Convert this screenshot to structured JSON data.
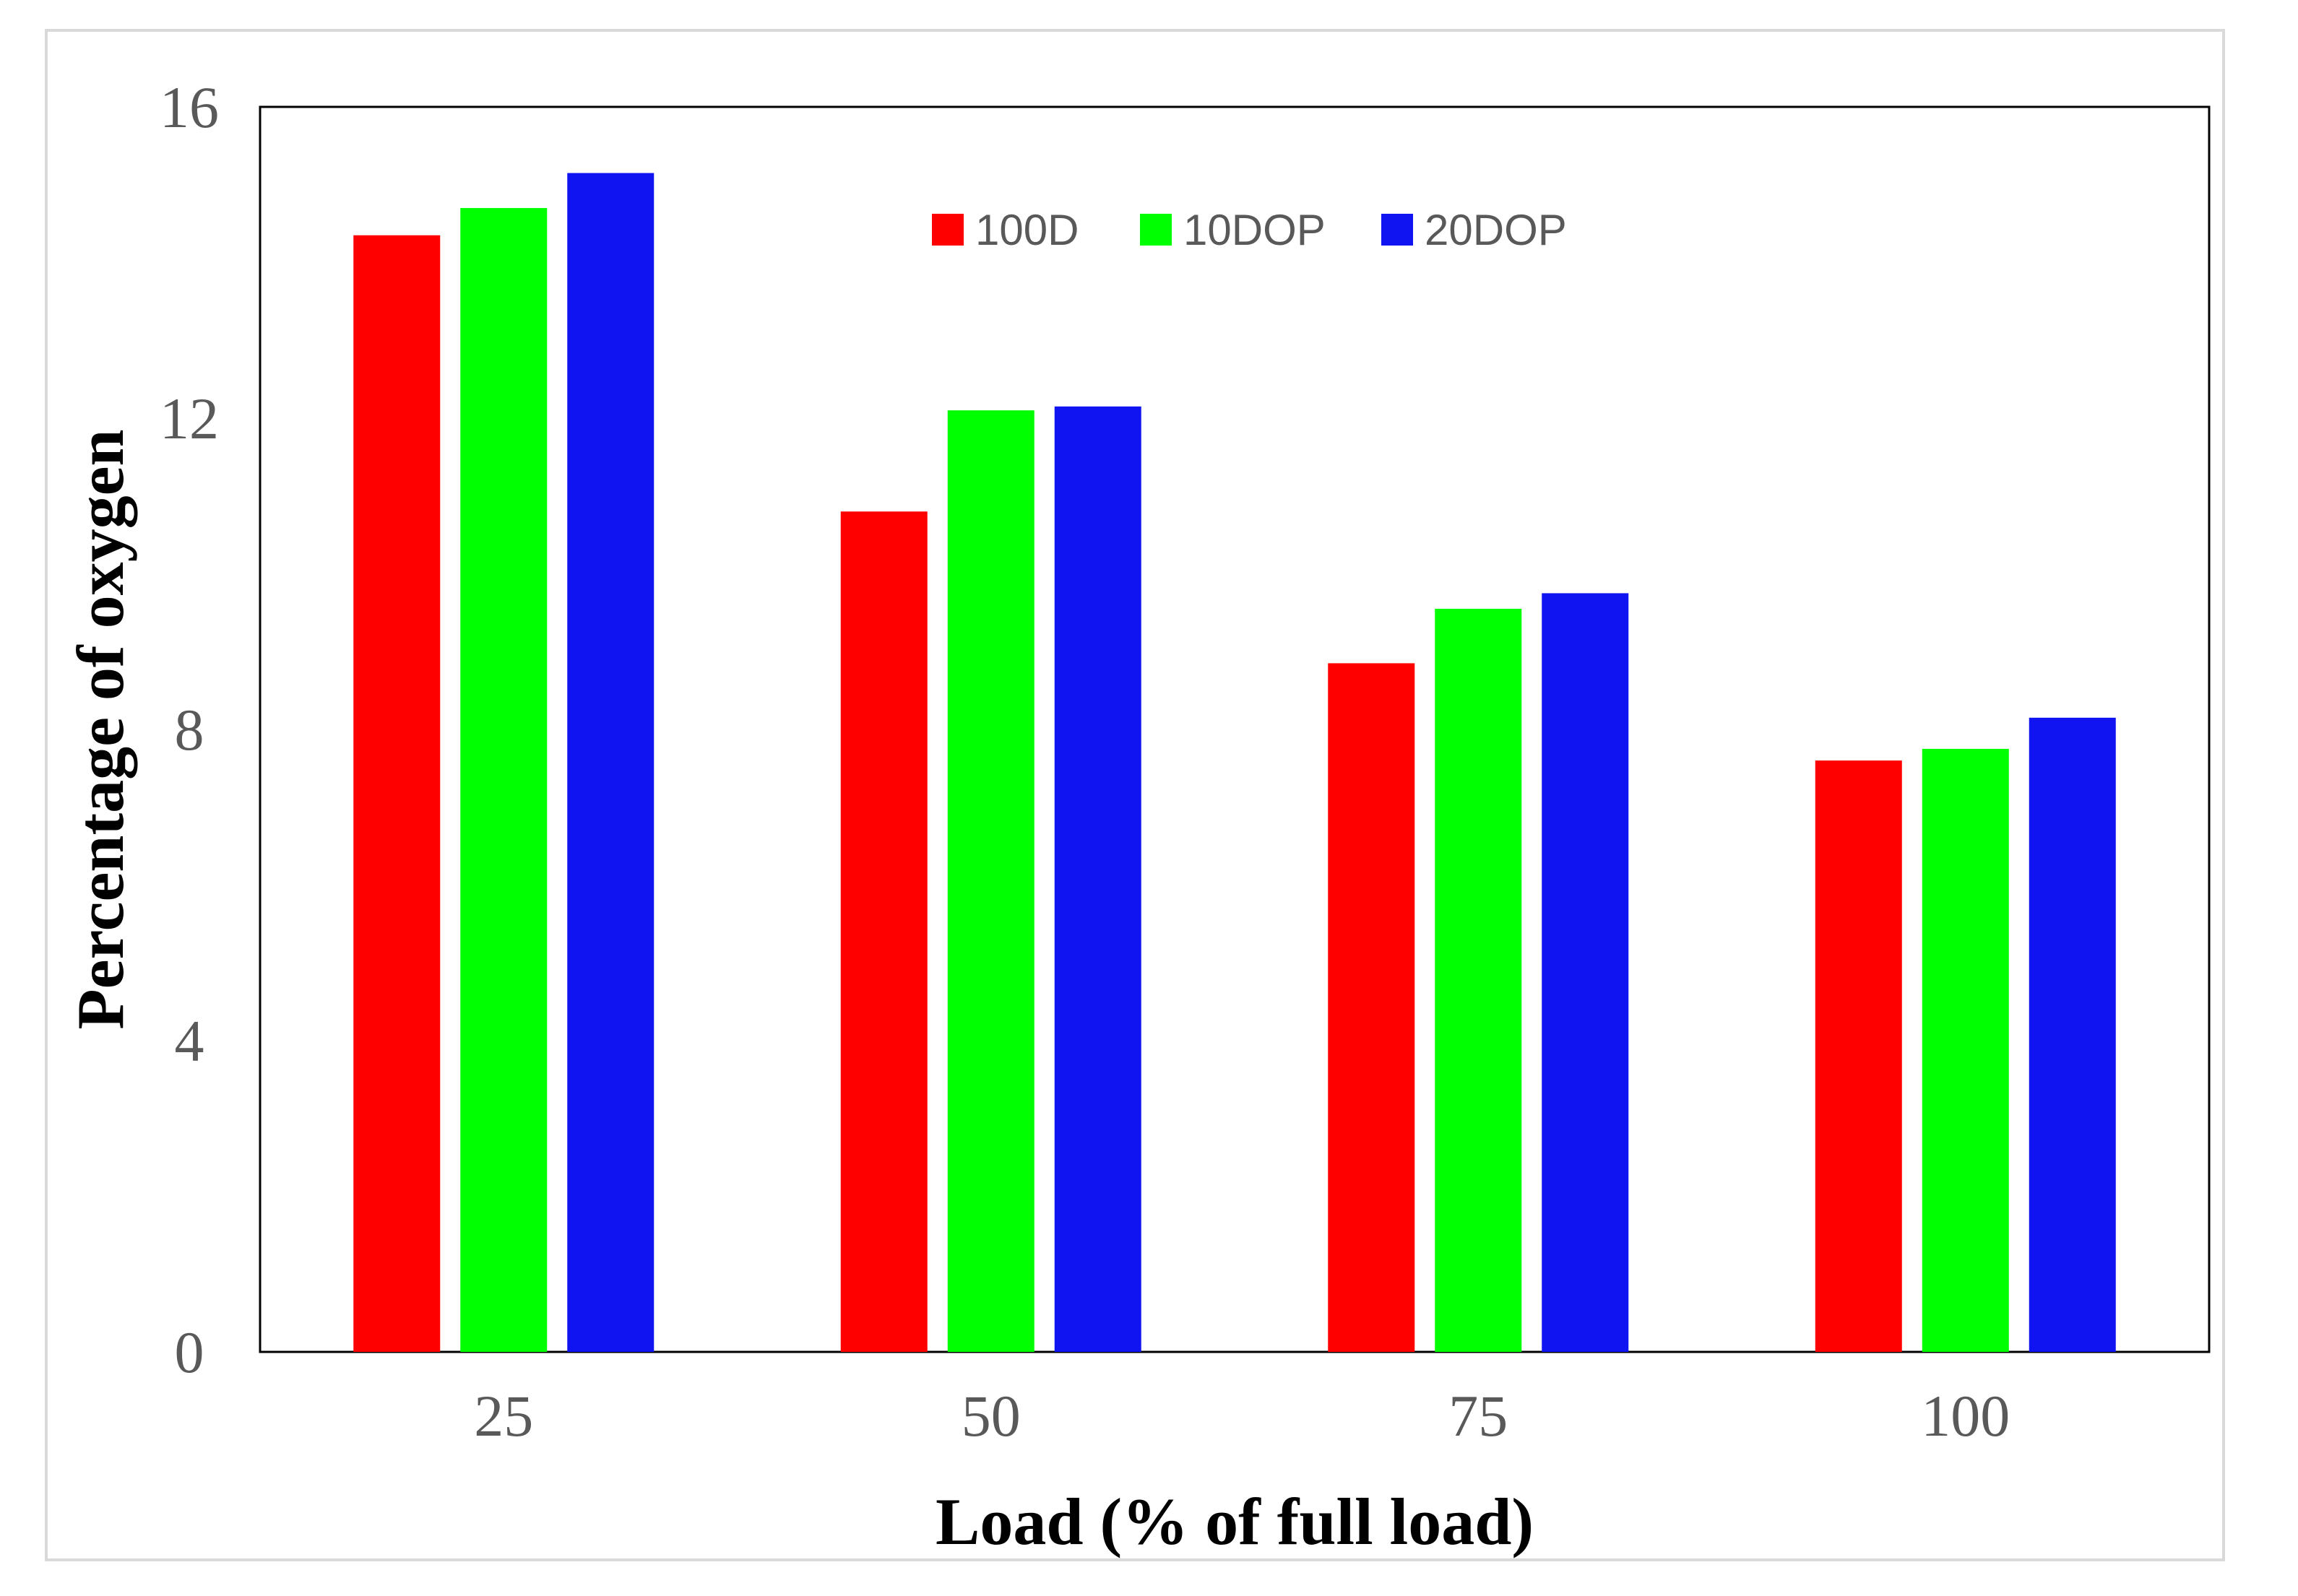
{
  "chart_data": {
    "type": "bar",
    "title": "",
    "xlabel": "Load (% of full load)",
    "ylabel": "Percentage of oxygen",
    "categories": [
      "25",
      "50",
      "75",
      "100"
    ],
    "ylim": [
      0,
      16
    ],
    "yticks": [
      0,
      4,
      8,
      12,
      16
    ],
    "grid": false,
    "legend_position": "top-center",
    "series": [
      {
        "name": "100D",
        "color": "#ff0000",
        "values": [
          14.35,
          10.8,
          8.85,
          7.6
        ]
      },
      {
        "name": "10DOP",
        "color": "#00ff00",
        "values": [
          14.7,
          12.1,
          9.55,
          7.75
        ]
      },
      {
        "name": "20DOP",
        "color": "#0f14f0",
        "values": [
          15.15,
          12.15,
          9.75,
          8.15
        ]
      }
    ]
  }
}
